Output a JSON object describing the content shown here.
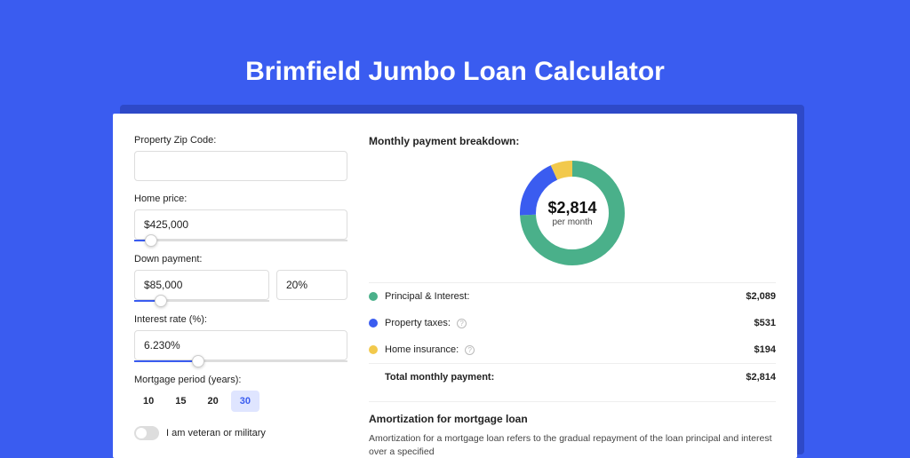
{
  "page": {
    "title": "Brimfield Jumbo Loan Calculator",
    "bg_color": "#3a5cf0",
    "shadow_color": "#2e49c8"
  },
  "form": {
    "zip": {
      "label": "Property Zip Code:",
      "value": ""
    },
    "home_price": {
      "label": "Home price:",
      "value": "$425,000",
      "slider_pct": 8
    },
    "down_payment": {
      "label": "Down payment:",
      "amount": "$85,000",
      "percent": "20%",
      "slider_pct": 20
    },
    "interest": {
      "label": "Interest rate (%):",
      "value": "6.230%",
      "slider_pct": 30
    },
    "period": {
      "label": "Mortgage period (years):",
      "options": [
        "10",
        "15",
        "20",
        "30"
      ],
      "selected": "30"
    },
    "veteran": {
      "label": "I am veteran or military",
      "on": false
    }
  },
  "breakdown": {
    "title": "Monthly payment breakdown:",
    "donut": {
      "value": "$2,814",
      "subtitle": "per month",
      "segments": [
        {
          "color": "#4ab08a",
          "pct": 74.2
        },
        {
          "color": "#3a5cf0",
          "pct": 18.9
        },
        {
          "color": "#f2c94c",
          "pct": 6.9
        }
      ],
      "stroke_width": 18,
      "bg": "#ffffff"
    },
    "rows": [
      {
        "dot": "#4ab08a",
        "label": "Principal & Interest:",
        "value": "$2,089",
        "info": false
      },
      {
        "dot": "#3a5cf0",
        "label": "Property taxes:",
        "value": "$531",
        "info": true
      },
      {
        "dot": "#f2c94c",
        "label": "Home insurance:",
        "value": "$194",
        "info": true
      }
    ],
    "total": {
      "label": "Total monthly payment:",
      "value": "$2,814"
    }
  },
  "amort": {
    "title": "Amortization for mortgage loan",
    "text": "Amortization for a mortgage loan refers to the gradual repayment of the loan principal and interest over a specified"
  }
}
